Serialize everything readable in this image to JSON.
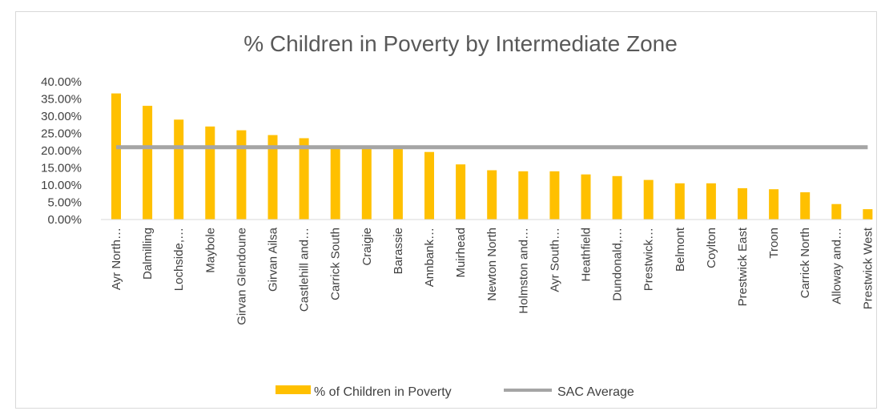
{
  "chart_data": {
    "type": "bar",
    "title": "% Children in Poverty by Intermediate Zone",
    "xlabel": "",
    "ylabel": "",
    "categories": [
      "Ayr North…",
      "Dalmilling",
      "Lochside,…",
      "Maybole",
      "Girvan Glendoune",
      "Girvan Ailsa",
      "Castlehill and…",
      "Carrick South",
      "Craigie",
      "Barassie",
      "Annbank…",
      "Muirhead",
      "Newton North",
      "Holmston and…",
      "Ayr South…",
      "Heathfield",
      "Dundonald,…",
      "Prestwick…",
      "Belmont",
      "Coylton",
      "Prestwick East",
      "Troon",
      "Carrick North",
      "Alloway and…",
      "Prestwick West"
    ],
    "series": [
      {
        "name": "% of Children in Poverty",
        "type": "bar",
        "color": "#FFC000",
        "values": [
          36.6,
          33.0,
          29.0,
          27.0,
          25.9,
          24.5,
          23.6,
          21.0,
          21.0,
          21.0,
          19.6,
          16.0,
          14.3,
          14.0,
          14.0,
          13.1,
          12.6,
          11.5,
          10.5,
          10.5,
          9.1,
          8.8,
          7.9,
          4.5,
          3.0
        ]
      },
      {
        "name": "SAC Average",
        "type": "line",
        "color": "#A5A5A5",
        "value": 21.0
      }
    ],
    "ylim": [
      0,
      40
    ],
    "yticks": [
      "0.00%",
      "5.00%",
      "10.00%",
      "15.00%",
      "20.00%",
      "25.00%",
      "30.00%",
      "35.00%",
      "40.00%"
    ],
    "grid": false,
    "legend_position": "bottom"
  }
}
